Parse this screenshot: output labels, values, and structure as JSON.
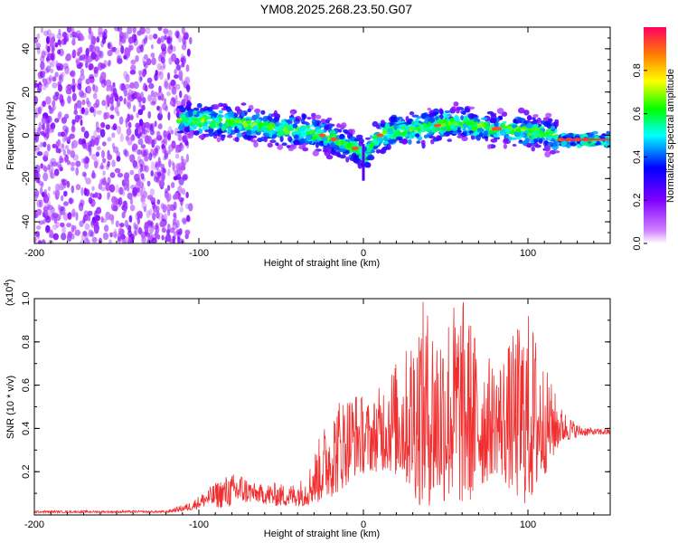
{
  "title": "YM08.2025.268.23.50.G07",
  "chart_data": [
    {
      "type": "heatmap",
      "name": "spectrogram",
      "xlabel": "Height of straight line (km)",
      "ylabel": "Frequency (Hz)",
      "xlim": [
        -200,
        150
      ],
      "ylim": [
        -50,
        50
      ],
      "xticks": [
        "-200",
        "-100",
        "0",
        "100"
      ],
      "yticks": [
        "40",
        "20",
        "0",
        "-20",
        "-40"
      ],
      "colorbar": {
        "label": "Normalized spectral amplitude",
        "range": [
          0.0,
          1.0
        ],
        "ticks": [
          "0.0",
          "0.2",
          "0.4",
          "0.6",
          "0.8"
        ],
        "colors": [
          "#ffffff",
          "#8000ff",
          "#0000ff",
          "#00ffff",
          "#00ff00",
          "#ffff00",
          "#ff8000",
          "#ff0000"
        ]
      },
      "ridge": {
        "x": [
          -110,
          -100,
          -90,
          -80,
          -70,
          -60,
          -50,
          -40,
          -30,
          -20,
          -15,
          -10,
          -5,
          0,
          5,
          10,
          20,
          30,
          40,
          50,
          60,
          70,
          80,
          90,
          100,
          110,
          120,
          130,
          140,
          150
        ],
        "y": [
          8,
          7,
          6,
          6,
          5,
          4,
          3,
          2,
          1,
          -1,
          -3,
          -4,
          -6,
          -10,
          -4,
          0,
          2,
          3,
          4,
          5,
          6,
          4,
          3,
          3,
          2,
          1,
          -2,
          -2,
          -2,
          -2
        ]
      }
    },
    {
      "type": "line",
      "name": "snr",
      "xlabel": "Height of straight line (km)",
      "ylabel": "SNR (10 * v/v)",
      "scale_label": "(x10",
      "scale_exp": "4",
      "scale_close": ")",
      "xlim": [
        -200,
        150
      ],
      "ylim": [
        0,
        1.0
      ],
      "xticks": [
        "-200",
        "-100",
        "0",
        "100"
      ],
      "yticks": [
        "1.0",
        "0.8",
        "0.6",
        "0.4",
        "0.2"
      ],
      "color": "#f03030",
      "envelope": {
        "x": [
          -200,
          -150,
          -120,
          -105,
          -95,
          -85,
          -75,
          -65,
          -55,
          -45,
          -35,
          -25,
          -15,
          -5,
          5,
          15,
          25,
          35,
          45,
          55,
          62,
          70,
          80,
          90,
          95,
          100,
          105,
          110,
          120,
          130,
          140,
          150
        ],
        "low": [
          0.01,
          0.01,
          0.01,
          0.02,
          0.04,
          0.03,
          0.05,
          0.06,
          0.04,
          0.04,
          0.04,
          0.06,
          0.1,
          0.18,
          0.2,
          0.2,
          0.15,
          0.03,
          0.05,
          0.05,
          0.03,
          0.1,
          0.2,
          0.1,
          0.05,
          0.04,
          0.08,
          0.18,
          0.33,
          0.36,
          0.37,
          0.37
        ],
        "high": [
          0.02,
          0.02,
          0.02,
          0.06,
          0.12,
          0.18,
          0.2,
          0.14,
          0.15,
          0.14,
          0.18,
          0.4,
          0.55,
          0.58,
          0.52,
          0.68,
          0.75,
          1.0,
          0.92,
          1.0,
          1.0,
          0.8,
          0.7,
          0.82,
          0.9,
          0.95,
          0.85,
          0.7,
          0.5,
          0.42,
          0.4,
          0.4
        ]
      }
    }
  ]
}
